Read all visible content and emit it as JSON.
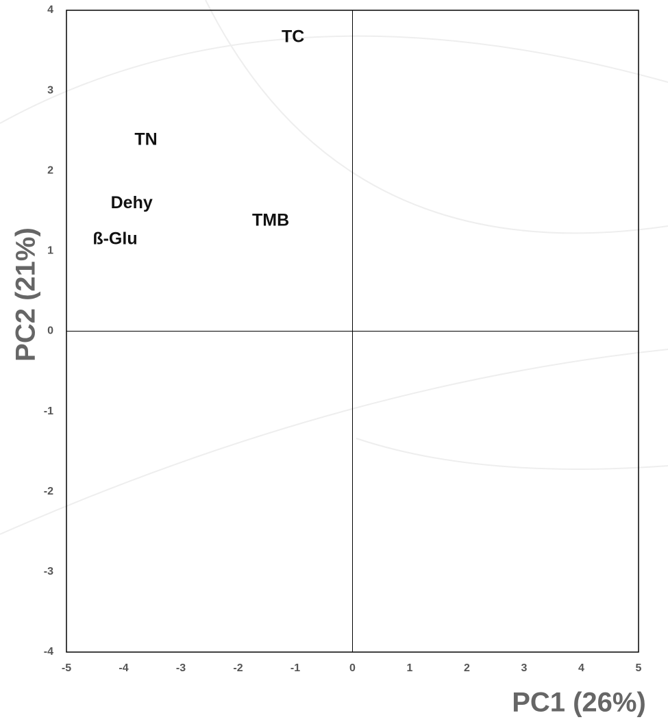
{
  "chart_data": {
    "type": "scatter",
    "x_label": "PC1 (26%)",
    "y_label": "PC2 (21%)",
    "labels": [
      "TC",
      "TN",
      "Dehy",
      "TMB",
      "ß-Glu"
    ],
    "x": [
      -1.04,
      -3.61,
      -3.86,
      -1.43,
      -4.15
    ],
    "values": [
      3.66,
      2.38,
      1.59,
      1.37,
      1.14
    ],
    "xlim": [
      -5,
      5
    ],
    "xticks": [
      -5,
      -4,
      -3,
      -2,
      -1,
      0,
      1,
      2,
      3,
      4,
      5
    ],
    "ylim": [
      -4,
      4
    ],
    "yticks": [
      -4,
      -3,
      -2,
      -1,
      0,
      1,
      2,
      3,
      4
    ]
  }
}
